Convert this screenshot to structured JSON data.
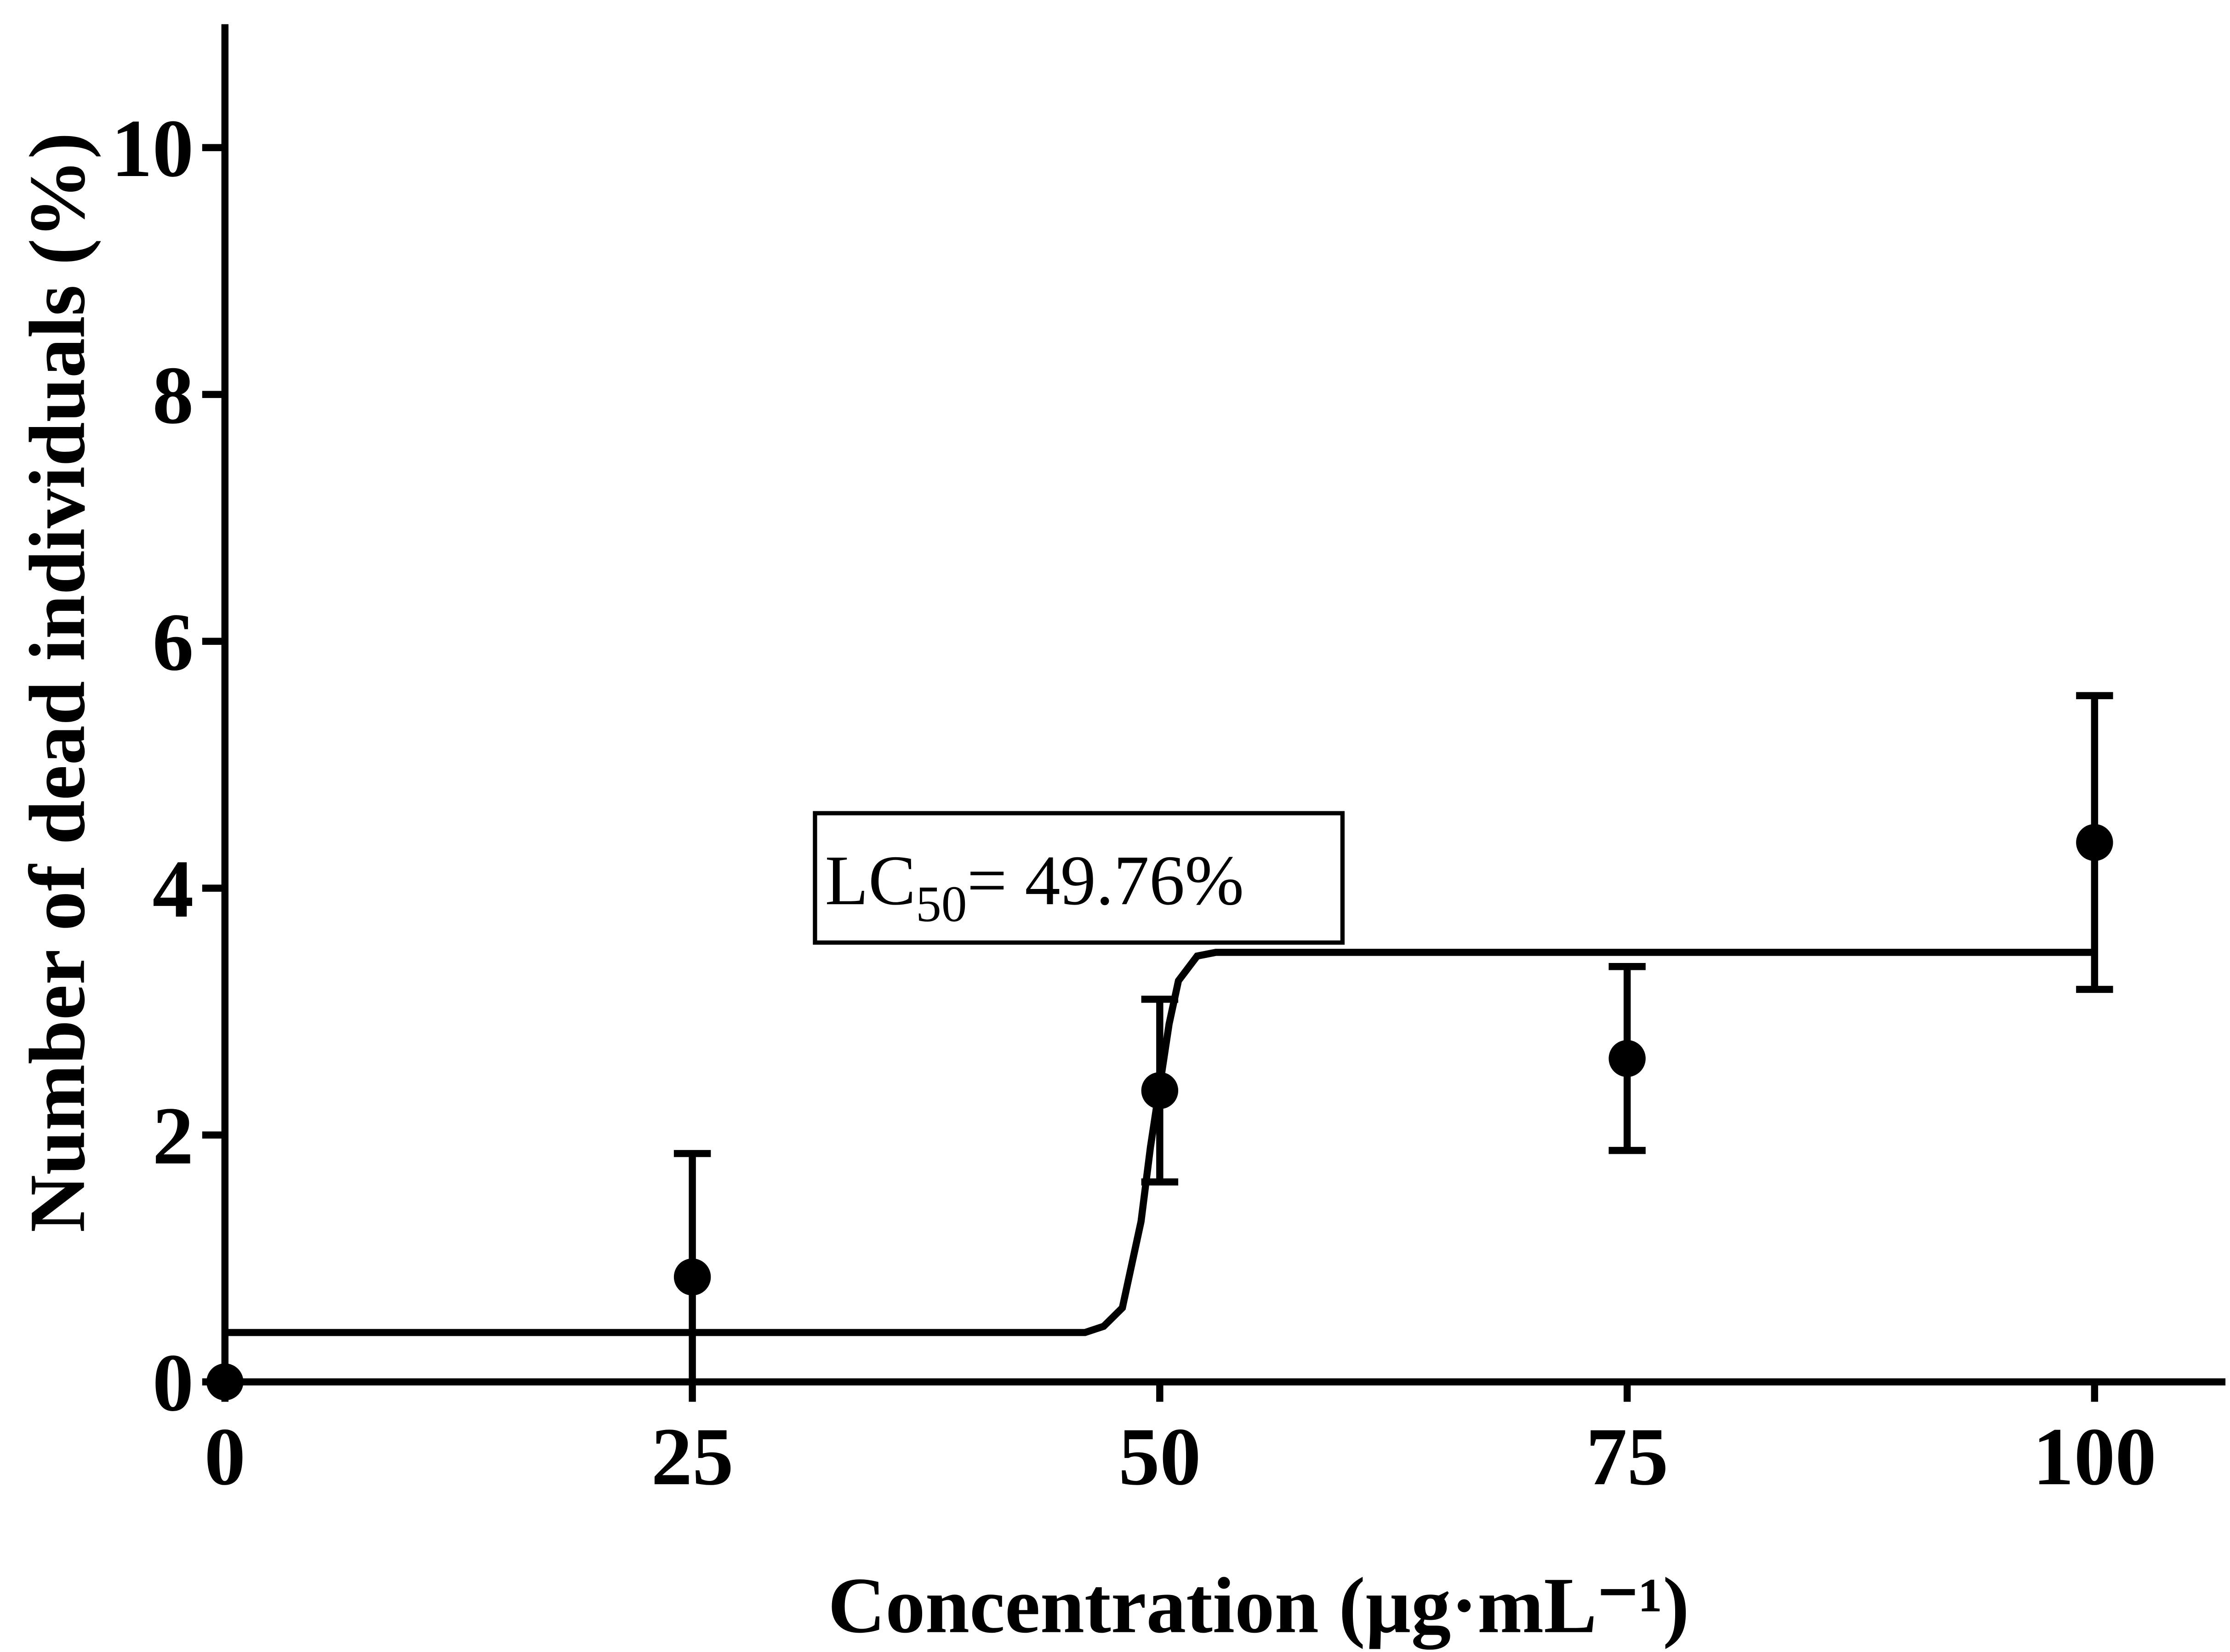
{
  "chart_data": {
    "type": "scatter",
    "x_label": "Concentration (µg·mL⁻¹)",
    "y_label": "Number of dead individuals (%)",
    "x": [
      0,
      25,
      50,
      75,
      100
    ],
    "values": [
      0,
      0.85,
      2.36,
      2.62,
      4.37
    ],
    "errors": [
      0,
      1.0,
      0.74,
      0.745,
      1.19
    ],
    "color": "#000000",
    "fit": {
      "x": [
        0,
        46,
        47,
        48,
        49,
        49.5,
        50,
        50.5,
        51,
        52,
        53,
        100
      ],
      "values": [
        0.4,
        0.4,
        0.45,
        0.6,
        1.3,
        1.9,
        2.4,
        2.9,
        3.25,
        3.45,
        3.48,
        3.48
      ]
    },
    "annotation": {
      "main": "LC",
      "subscript": "50",
      "rest": "= 49.76%"
    },
    "xlim": [
      0,
      107
    ],
    "ylim": [
      0,
      11
    ],
    "xticks": [
      0,
      25,
      50,
      75,
      100
    ],
    "yticks": [
      0,
      2,
      4,
      6,
      8,
      10
    ],
    "grid": false
  }
}
